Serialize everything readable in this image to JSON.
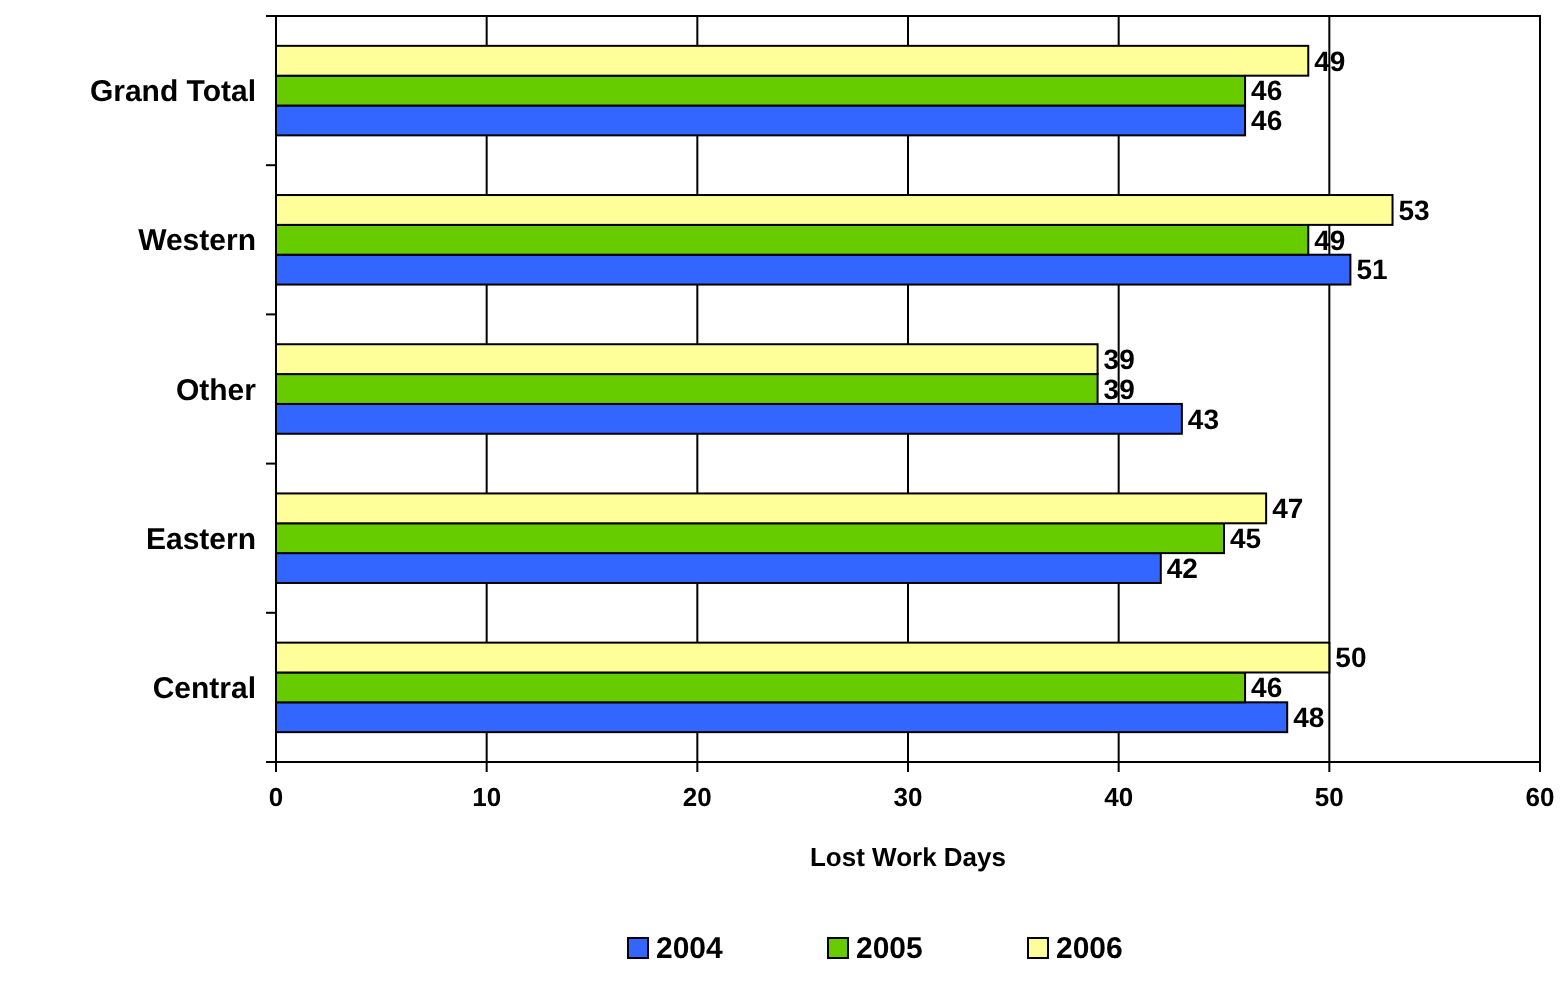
{
  "chart_data": {
    "type": "bar",
    "orientation": "horizontal",
    "xlabel": "Lost Work Days",
    "categories": [
      "Grand Total",
      "Western",
      "Other",
      "Eastern",
      "Central"
    ],
    "series": [
      {
        "name": "2004",
        "color": "#3366ff",
        "values": [
          46,
          51,
          43,
          42,
          48
        ]
      },
      {
        "name": "2005",
        "color": "#66cc00",
        "values": [
          46,
          49,
          39,
          45,
          46
        ]
      },
      {
        "name": "2006",
        "color": "#ffff99",
        "values": [
          49,
          53,
          39,
          47,
          50
        ]
      }
    ],
    "xlim": [
      0,
      60
    ],
    "xticks": [
      0,
      10,
      20,
      30,
      40,
      50,
      60
    ],
    "grid": "x",
    "legend": "bottom",
    "data_labels": true
  }
}
